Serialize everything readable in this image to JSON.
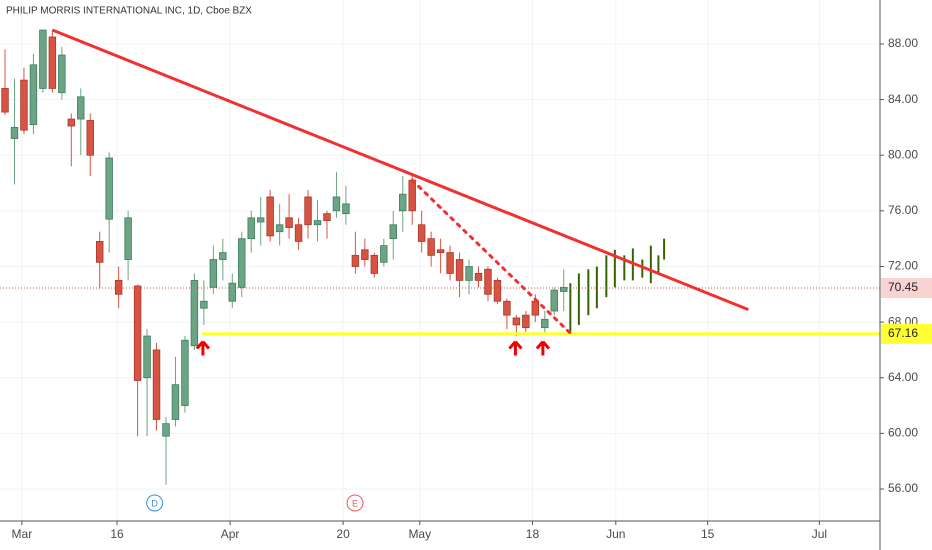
{
  "chart_data": {
    "type": "candlestick",
    "title": "PHILIP MORRIS INTERNATIONAL INC, 1D, Cboe BZX",
    "open": [
      84.8,
      81.2,
      85.4,
      82.2,
      84.8,
      88.5,
      84.5,
      82.6,
      82.6,
      82.5,
      73.8,
      75.4,
      71.0,
      72.5,
      70.6,
      64.0,
      66.0,
      59.8,
      61.0,
      62.0,
      66.3,
      69.0,
      70.5,
      72.5,
      69.5,
      70.5,
      74.0,
      75.2,
      77.0,
      74.5,
      75.5,
      75.0,
      77.0,
      75.0,
      75.8,
      76.0,
      75.8,
      72.8,
      73.2,
      72.8,
      72.3,
      74.0,
      76.0,
      78.2,
      75.0,
      74.0,
      73.2,
      73.0,
      72.5,
      71.0,
      71.5,
      71.8,
      71.0,
      69.5,
      68.3,
      68.5,
      69.5,
      67.6,
      68.8,
      70.2
    ],
    "high": [
      87.6,
      85.5,
      86.3,
      87.3,
      89.0,
      89.0,
      87.8,
      83.0,
      84.8,
      83.0,
      74.5,
      80.2,
      72.0,
      76.0,
      70.7,
      67.5,
      66.5,
      61.2,
      65.5,
      67.0,
      71.5,
      71.0,
      73.5,
      74.0,
      71.5,
      74.5,
      76.0,
      77.0,
      77.5,
      76.5,
      77.2,
      75.5,
      77.5,
      76.8,
      76.0,
      78.8,
      77.8,
      74.5,
      74.0,
      73.0,
      74.0,
      76.0,
      78.5,
      78.5,
      76.0,
      74.5,
      74.0,
      73.5,
      73.0,
      72.5,
      72.0,
      72.0,
      71.2,
      69.7,
      68.5,
      68.8,
      70.0,
      68.8,
      70.5,
      71.8
    ],
    "low": [
      82.9,
      77.9,
      81.5,
      81.5,
      84.5,
      84.5,
      84.0,
      79.2,
      80.0,
      78.5,
      70.4,
      73.0,
      69.0,
      71.0,
      59.8,
      59.8,
      60.2,
      56.3,
      60.5,
      61.5,
      66.0,
      67.8,
      70.0,
      71.0,
      69.0,
      69.8,
      73.0,
      73.5,
      73.8,
      73.5,
      74.0,
      73.2,
      74.0,
      73.8,
      74.0,
      75.5,
      75.0,
      71.5,
      72.0,
      71.2,
      72.0,
      72.5,
      74.5,
      75.0,
      73.0,
      72.0,
      71.5,
      71.0,
      69.8,
      70.0,
      70.5,
      69.5,
      69.3,
      67.5,
      67.0,
      67.3,
      68.0,
      67.2,
      68.5,
      68.8
    ],
    "close": [
      83.1,
      82.0,
      81.8,
      86.5,
      89.0,
      84.8,
      87.2,
      82.1,
      84.2,
      80.0,
      72.3,
      79.8,
      70.0,
      75.5,
      63.8,
      67.0,
      61.0,
      60.7,
      63.5,
      66.7,
      71.0,
      69.5,
      72.5,
      73.0,
      70.8,
      74.0,
      75.5,
      75.5,
      74.2,
      75.0,
      74.8,
      73.8,
      75.0,
      75.3,
      75.3,
      77.0,
      76.5,
      72.0,
      72.5,
      71.5,
      73.5,
      75.0,
      77.2,
      76.0,
      73.8,
      72.8,
      73.0,
      71.5,
      71.0,
      72.0,
      71.0,
      70.0,
      69.5,
      68.5,
      67.8,
      67.6,
      68.5,
      68.2,
      70.3,
      70.5
    ],
    "up_color": "#6ba583",
    "down_color": "#d75442",
    "projection": {
      "color": "#336600",
      "x": [
        59.7,
        60.6,
        61.6,
        62.5,
        63.5,
        64.4,
        65.4,
        66.3,
        67.3,
        68.2,
        69.0,
        69.6
      ],
      "low": [
        67.2,
        67.8,
        68.5,
        69.0,
        69.8,
        70.5,
        71.0,
        71.0,
        71.2,
        70.8,
        71.5,
        72.5
      ],
      "high": [
        70.8,
        71.5,
        71.8,
        72.0,
        72.8,
        73.2,
        72.8,
        73.3,
        72.5,
        73.5,
        72.8,
        74.0
      ]
    },
    "trendline": {
      "x": [
        5,
        78.5
      ],
      "y": [
        89.0,
        68.9
      ],
      "color": "#f23030"
    },
    "dotted_line": {
      "x": [
        43,
        59.7
      ],
      "y": [
        78.2,
        67.2
      ],
      "color": "#f23030"
    },
    "support": {
      "x": 20.8,
      "value": 67.16,
      "label": "67.16",
      "color": "#ffff33"
    },
    "last_price": {
      "value": 70.45,
      "label": "70.45",
      "color": "#d75442"
    },
    "arrows": {
      "x": [
        20.9,
        53.9,
        56.8
      ],
      "y": [
        66.1,
        66.1,
        66.1
      ],
      "color": "#f00000"
    },
    "events": [
      {
        "x": 15.8,
        "label": "D",
        "color": "#3d8fe0"
      },
      {
        "x": 36.96,
        "label": "E",
        "color": "#e06060"
      }
    ],
    "xlim": [
      -0.53,
      92.4
    ],
    "xticks": [
      {
        "value": 1.78,
        "label": "Mar"
      },
      {
        "value": 11.83,
        "label": "16"
      },
      {
        "value": 23.77,
        "label": "Apr"
      },
      {
        "value": 35.7,
        "label": "20"
      },
      {
        "value": 43.8,
        "label": "May"
      },
      {
        "value": 55.7,
        "label": "18"
      },
      {
        "value": 64.5,
        "label": "Jun"
      },
      {
        "value": 74.2,
        "label": "15"
      },
      {
        "value": 86.0,
        "label": "Jul"
      }
    ],
    "ylim": [
      53.7,
      91.16
    ],
    "yticks": [
      {
        "value": 56,
        "label": "56.00"
      },
      {
        "value": 60,
        "label": "60.00"
      },
      {
        "value": 64,
        "label": "64.00"
      },
      {
        "value": 68,
        "label": "68.00"
      },
      {
        "value": 72,
        "label": "72.00"
      },
      {
        "value": 76,
        "label": "76.00"
      },
      {
        "value": 80,
        "label": "80.00"
      },
      {
        "value": 84,
        "label": "84.00"
      },
      {
        "value": 88,
        "label": "88.00"
      }
    ],
    "grid": true
  }
}
